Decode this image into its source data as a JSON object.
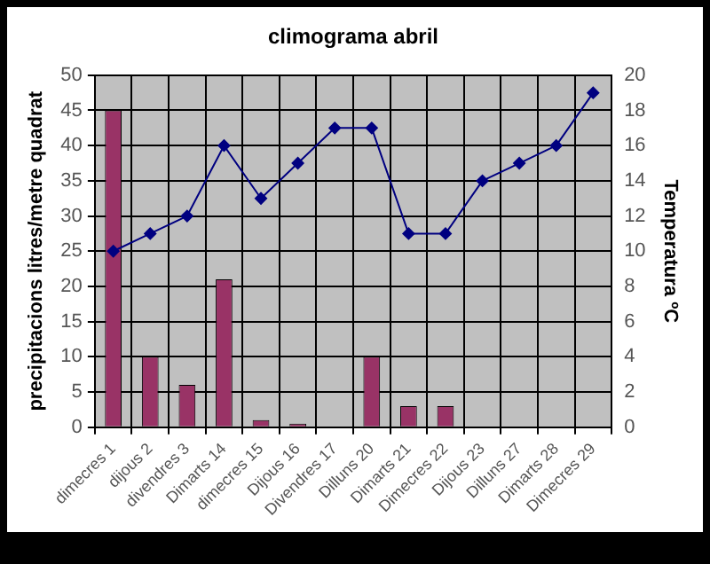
{
  "chart_data": {
    "type": "bar",
    "title": "climograma abril",
    "ylabel": "precipitacions litres/metre quadrat",
    "y2label": "Temperatura ºC",
    "categories": [
      "dimecres 1",
      "dijous 2",
      "divendres 3",
      "Dimarts 14",
      "dimecres 15",
      "Dijous 16",
      "Divendres 17",
      "Dilluns 20",
      "Dimarts 21",
      "Dimecres 22",
      "Dijous 23",
      "Dilluns 27",
      "Dimarts 28",
      "Dimecres 29"
    ],
    "series": [
      {
        "color": "#993366",
        "values": [
          45,
          10,
          6,
          21,
          1,
          0.5,
          0,
          10,
          3,
          3,
          0,
          0,
          0,
          0
        ]
      },
      {
        "type": "line",
        "axis": "y2",
        "color": "#000080",
        "marker": "diamond",
        "values": [
          10,
          11,
          12,
          16,
          13,
          15,
          17,
          17,
          11,
          11,
          14,
          15,
          16,
          19
        ]
      }
    ],
    "ylim": [
      0,
      50
    ],
    "yticks": [
      0,
      5,
      10,
      15,
      20,
      25,
      30,
      35,
      40,
      45,
      50
    ],
    "y2lim": [
      0,
      20
    ],
    "y2ticks": [
      0,
      2,
      4,
      6,
      8,
      10,
      12,
      14,
      16,
      18,
      20
    ],
    "grid": true,
    "legend": false
  }
}
